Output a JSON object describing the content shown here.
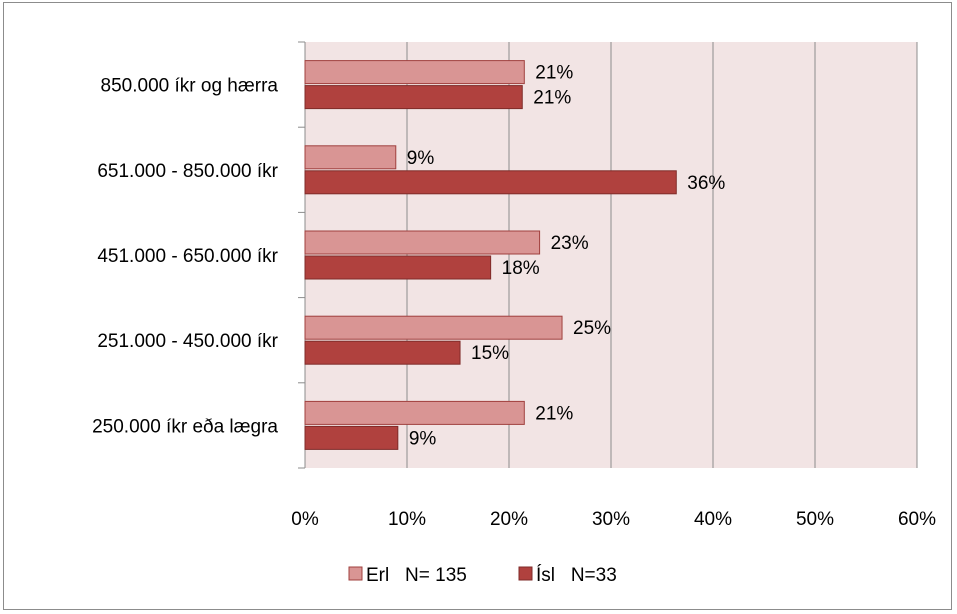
{
  "chart_data": {
    "type": "bar",
    "orientation": "horizontal",
    "categories": [
      "850.000 íkr og hærra",
      "651.000 - 850.000 íkr",
      "451.000 - 650.000 íkr",
      "251.000 - 450.000 íkr",
      "250.000  íkr eða lægra"
    ],
    "series": [
      {
        "name": "Erl   N= 135",
        "values": [
          21.5,
          8.9,
          23.0,
          25.2,
          21.5
        ],
        "labels": [
          "21%",
          "9%",
          "23%",
          "25%",
          "21%"
        ],
        "color": "#d99594",
        "border": "#a0403e"
      },
      {
        "name": "Ísl   N=33",
        "values": [
          21.3,
          36.4,
          18.2,
          15.2,
          9.1
        ],
        "labels": [
          "21%",
          "36%",
          "18%",
          "15%",
          "9%"
        ],
        "color": "#b0413e",
        "border": "#7f2b29"
      }
    ],
    "xlim": [
      0,
      60
    ],
    "xticks": [
      "0%",
      "10%",
      "20%",
      "30%",
      "40%",
      "50%",
      "60%"
    ],
    "grid": true,
    "plot_background": "#f2e4e4",
    "legend_position": "bottom",
    "title": "",
    "xlabel": "",
    "ylabel": ""
  }
}
